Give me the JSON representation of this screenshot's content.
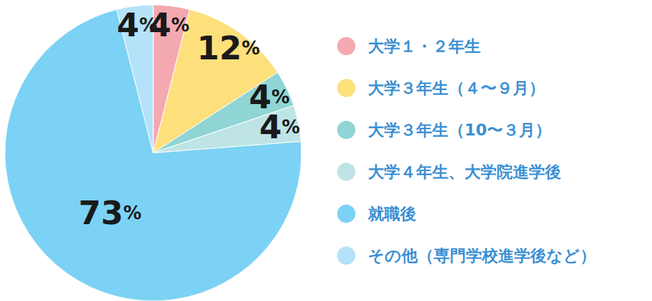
{
  "chart_data": {
    "type": "pie",
    "categories": [
      "大学１・２年生",
      "大学３年生（４〜９月）",
      "大学３年生（10〜３月）",
      "大学４年生、大学院進学後",
      "就職後",
      "その他（専門学校進学後など）"
    ],
    "values": [
      4,
      12,
      4,
      4,
      73,
      4
    ],
    "value_labels": [
      "4%",
      "12%",
      "4%",
      "4%",
      "73%",
      "4%"
    ],
    "colors": [
      "#f4a9b0",
      "#fde07c",
      "#8fd5d5",
      "#bee4e5",
      "#7cd2f4",
      "#b4e2f8"
    ],
    "data_labels": true,
    "legend": "right"
  }
}
